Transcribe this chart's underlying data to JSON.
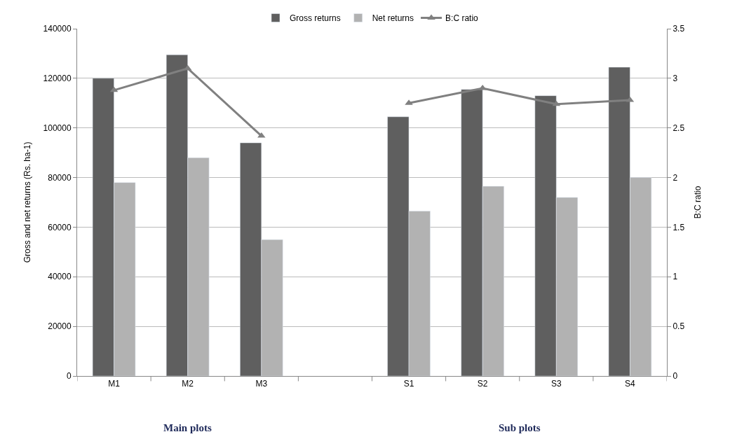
{
  "chart_data": {
    "type": "bar",
    "categories": [
      "M1",
      "M2",
      "M3",
      null,
      "S1",
      "S2",
      "S3",
      "S4"
    ],
    "series": [
      {
        "name": "Gross returns",
        "color": "#5f5f5f",
        "values": [
          120000,
          129500,
          94000,
          null,
          104500,
          115500,
          113000,
          124500
        ]
      },
      {
        "name": "Net returns",
        "color": "#b2b2b2",
        "values": [
          78000,
          88000,
          55000,
          null,
          66500,
          76500,
          72000,
          80000
        ]
      },
      {
        "name": "B:C ratio",
        "type": "line",
        "axis": "y2",
        "marker": "triangle",
        "color": "#808080",
        "values": [
          2.88,
          3.1,
          2.42,
          null,
          2.75,
          2.9,
          2.74,
          2.78
        ]
      }
    ],
    "ylabel": "Gross and net returns (Rs. ha-1)",
    "y2label": "B:C ratio",
    "ylim": [
      0,
      140000
    ],
    "yticks": [
      0,
      20000,
      40000,
      60000,
      80000,
      100000,
      120000,
      140000
    ],
    "y2lim": [
      0,
      3.5
    ],
    "y2ticks": [
      0,
      0.5,
      1,
      1.5,
      2,
      2.5,
      3,
      3.5
    ],
    "annotations": [
      "Main plots",
      "Sub plots"
    ],
    "grid": "y",
    "legend": "top"
  }
}
